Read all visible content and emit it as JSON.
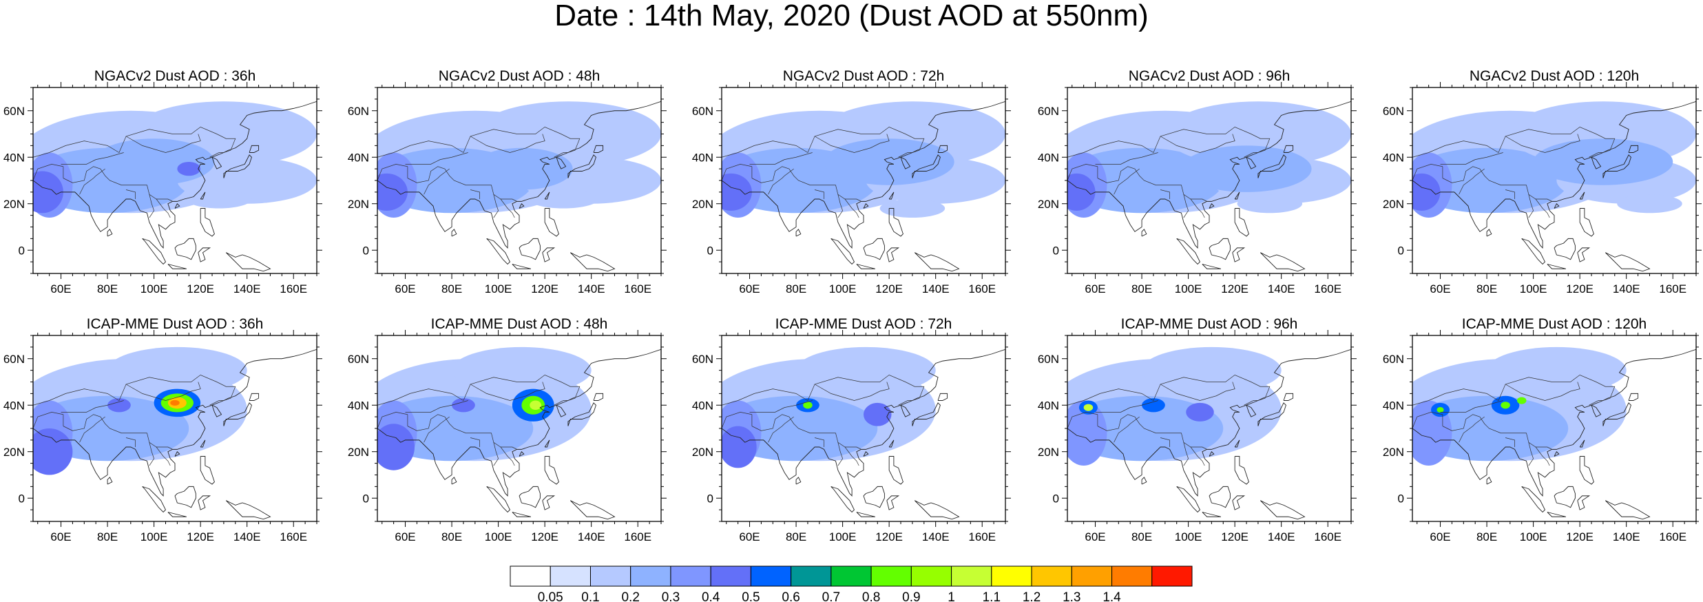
{
  "title": "Date : 14th May, 2020 (Dust AOD at 550nm)",
  "lon_ticks": [
    "60E",
    "80E",
    "100E",
    "120E",
    "140E",
    "160E"
  ],
  "lon_values": [
    60,
    80,
    100,
    120,
    140,
    160
  ],
  "lat_ticks": [
    "60N",
    "40N",
    "20N",
    "0"
  ],
  "lat_values": [
    60,
    40,
    20,
    0
  ],
  "lon_range": [
    48,
    170
  ],
  "lat_range": [
    -10,
    70
  ],
  "panels": [
    {
      "title": "NGACv2 Dust AOD : 36h",
      "model": "NGACv2",
      "lead": "36h"
    },
    {
      "title": "NGACv2 Dust AOD : 48h",
      "model": "NGACv2",
      "lead": "48h"
    },
    {
      "title": "NGACv2 Dust AOD : 72h",
      "model": "NGACv2",
      "lead": "72h"
    },
    {
      "title": "NGACv2 Dust AOD : 96h",
      "model": "NGACv2",
      "lead": "96h"
    },
    {
      "title": "NGACv2 Dust AOD : 120h",
      "model": "NGACv2",
      "lead": "120h"
    },
    {
      "title": "ICAP-MME Dust AOD : 36h",
      "model": "ICAP-MME",
      "lead": "36h"
    },
    {
      "title": "ICAP-MME Dust AOD : 48h",
      "model": "ICAP-MME",
      "lead": "48h"
    },
    {
      "title": "ICAP-MME Dust AOD : 72h",
      "model": "ICAP-MME",
      "lead": "72h"
    },
    {
      "title": "ICAP-MME Dust AOD : 96h",
      "model": "ICAP-MME",
      "lead": "96h"
    },
    {
      "title": "ICAP-MME Dust AOD : 120h",
      "model": "ICAP-MME",
      "lead": "120h"
    }
  ],
  "colorbar": {
    "labels": [
      "0.05",
      "0.1",
      "0.2",
      "0.3",
      "0.4",
      "0.5",
      "0.6",
      "0.7",
      "0.8",
      "0.9",
      "1",
      "1.1",
      "1.2",
      "1.3",
      "1.4"
    ],
    "colors": [
      "#ffffff",
      "#d6e2ff",
      "#b5c9ff",
      "#8eb2ff",
      "#7f96ff",
      "#6370f8",
      "#0063ff",
      "#009696",
      "#00c633",
      "#63ff00",
      "#96ff00",
      "#c6ff33",
      "#ffff00",
      "#ffc600",
      "#ffa000",
      "#ff7c00",
      "#ff1900"
    ]
  },
  "dust_features": [
    [
      {
        "lon": 52,
        "lat": 25,
        "rx": 9,
        "ry": 9,
        "level": 0.4
      },
      {
        "lon": 100,
        "lat": 38,
        "rx": 26,
        "ry": 10,
        "level": 0.2
      },
      {
        "lon": 115,
        "lat": 35,
        "rx": 5,
        "ry": 3,
        "level": 0.4
      },
      {
        "lon": 128,
        "lat": 22,
        "rx": 14,
        "ry": 4,
        "level": 0.1
      }
    ],
    [
      {
        "lon": 52,
        "lat": 25,
        "rx": 9,
        "ry": 8,
        "level": 0.4
      },
      {
        "lon": 110,
        "lat": 35,
        "rx": 22,
        "ry": 9,
        "level": 0.2
      },
      {
        "lon": 128,
        "lat": 22,
        "rx": 15,
        "ry": 4,
        "level": 0.1
      }
    ],
    [
      {
        "lon": 52,
        "lat": 25,
        "rx": 9,
        "ry": 8,
        "level": 0.4
      },
      {
        "lon": 120,
        "lat": 38,
        "rx": 28,
        "ry": 10,
        "level": 0.2
      },
      {
        "lon": 130,
        "lat": 18,
        "rx": 14,
        "ry": 4,
        "level": 0.1
      }
    ],
    [
      {
        "lon": 52,
        "lat": 25,
        "rx": 8,
        "ry": 8,
        "level": 0.4
      },
      {
        "lon": 125,
        "lat": 35,
        "rx": 28,
        "ry": 10,
        "level": 0.2
      },
      {
        "lon": 135,
        "lat": 20,
        "rx": 14,
        "ry": 4,
        "level": 0.1
      }
    ],
    [
      {
        "lon": 52,
        "lat": 25,
        "rx": 8,
        "ry": 8,
        "level": 0.4
      },
      {
        "lon": 130,
        "lat": 38,
        "rx": 30,
        "ry": 10,
        "level": 0.2
      },
      {
        "lon": 150,
        "lat": 20,
        "rx": 14,
        "ry": 4,
        "level": 0.1
      }
    ]
  ],
  "icap_features": [
    [
      {
        "lon": 110,
        "lat": 41,
        "rx": 10,
        "ry": 6,
        "level": 0.5
      },
      {
        "lon": 110,
        "lat": 41,
        "rx": 7,
        "ry": 4,
        "level": 0.8
      },
      {
        "lon": 110,
        "lat": 41,
        "rx": 4,
        "ry": 2.5,
        "level": 1.2
      },
      {
        "lon": 109,
        "lat": 41,
        "rx": 2,
        "ry": 1.2,
        "level": 1.4
      },
      {
        "lon": 55,
        "lat": 20,
        "rx": 10,
        "ry": 10,
        "level": 0.4
      },
      {
        "lon": 85,
        "lat": 40,
        "rx": 5,
        "ry": 3,
        "level": 0.4
      }
    ],
    [
      {
        "lon": 115,
        "lat": 40,
        "rx": 9,
        "ry": 7,
        "level": 0.5
      },
      {
        "lon": 115,
        "lat": 40,
        "rx": 5,
        "ry": 4,
        "level": 0.8
      },
      {
        "lon": 116,
        "lat": 40,
        "rx": 2.5,
        "ry": 2,
        "level": 1.0
      },
      {
        "lon": 55,
        "lat": 22,
        "rx": 9,
        "ry": 10,
        "level": 0.4
      },
      {
        "lon": 85,
        "lat": 40,
        "rx": 5,
        "ry": 3,
        "level": 0.4
      }
    ],
    [
      {
        "lon": 85,
        "lat": 40,
        "rx": 5,
        "ry": 3,
        "level": 0.5
      },
      {
        "lon": 85,
        "lat": 40,
        "rx": 2,
        "ry": 1.5,
        "level": 0.8
      },
      {
        "lon": 115,
        "lat": 36,
        "rx": 6,
        "ry": 5,
        "level": 0.4
      },
      {
        "lon": 55,
        "lat": 22,
        "rx": 8,
        "ry": 9,
        "level": 0.4
      }
    ],
    [
      {
        "lon": 57,
        "lat": 39,
        "rx": 4,
        "ry": 3,
        "level": 0.5
      },
      {
        "lon": 57,
        "lat": 39,
        "rx": 2,
        "ry": 1.5,
        "level": 1.0
      },
      {
        "lon": 85,
        "lat": 40,
        "rx": 5,
        "ry": 3,
        "level": 0.5
      },
      {
        "lon": 105,
        "lat": 37,
        "rx": 6,
        "ry": 4,
        "level": 0.4
      }
    ],
    [
      {
        "lon": 60,
        "lat": 38,
        "rx": 4,
        "ry": 3,
        "level": 0.5
      },
      {
        "lon": 60,
        "lat": 38,
        "rx": 1.5,
        "ry": 1.2,
        "level": 0.8
      },
      {
        "lon": 88,
        "lat": 40,
        "rx": 6,
        "ry": 4,
        "level": 0.5
      },
      {
        "lon": 88,
        "lat": 40,
        "rx": 2,
        "ry": 1.5,
        "level": 0.8
      },
      {
        "lon": 95,
        "lat": 42,
        "rx": 2,
        "ry": 1.5,
        "level": 0.8
      }
    ]
  ]
}
